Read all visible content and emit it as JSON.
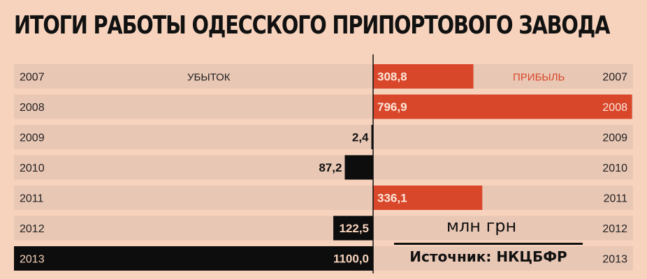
{
  "title": "ИТОГИ РАБОТЫ ОДЕССКОГО ПРИПОРТОВОГО ЗАВОДА",
  "legend": {
    "loss": "УБЫТОК",
    "profit": "ПРИБЫЛЬ"
  },
  "unit": "млн грн",
  "source": "Источник: НКЦБФР",
  "colors": {
    "background": "#f7d3bd",
    "row_band": "#e9c7b5",
    "profit": "#d9472b",
    "loss": "#0d0d0d",
    "highlight_row": "#0d0d0d"
  },
  "chart_data": {
    "type": "bar",
    "orientation": "horizontal-diverging",
    "categories": [
      "2007",
      "2008",
      "2009",
      "2010",
      "2011",
      "2012",
      "2013"
    ],
    "series": [
      {
        "name": "УБЫТОК",
        "values": [
          null,
          null,
          2.4,
          87.2,
          null,
          122.5,
          1100.0
        ]
      },
      {
        "name": "ПРИБЫЛЬ",
        "values": [
          308.8,
          796.9,
          null,
          null,
          336.1,
          null,
          null
        ]
      }
    ],
    "value_labels": [
      "308,8",
      "796,9",
      "2,4",
      "87,2",
      "336,1",
      "122,5",
      "1100,0"
    ]
  }
}
